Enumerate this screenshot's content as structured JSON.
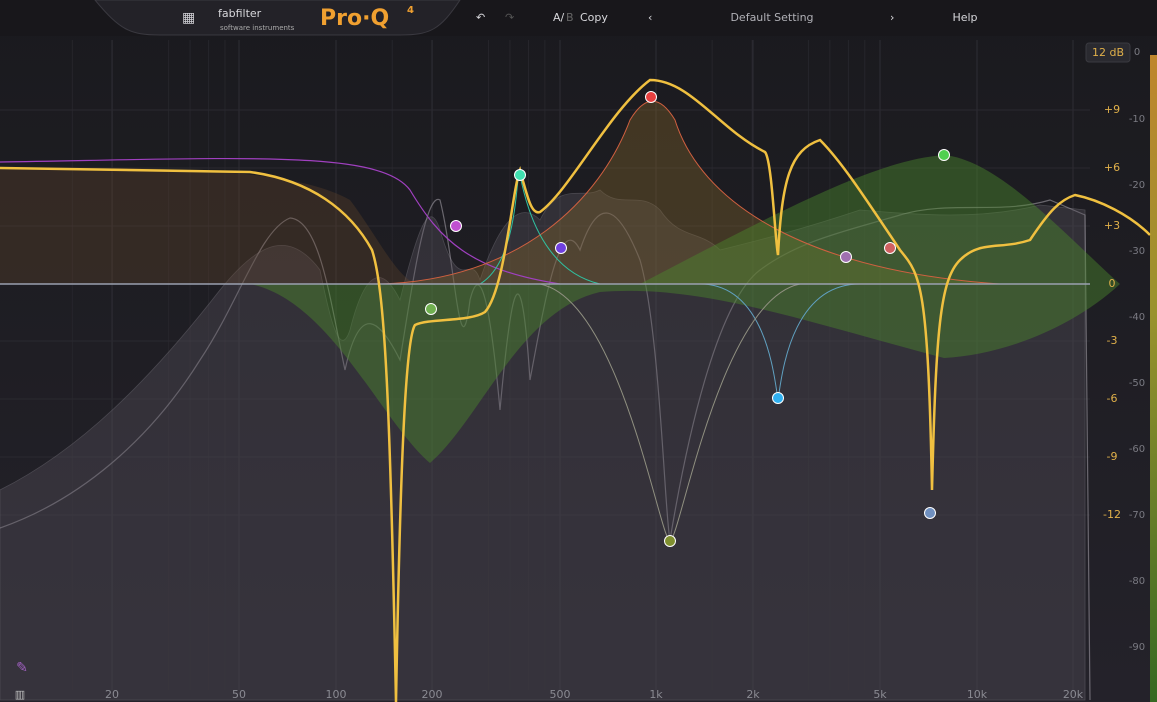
{
  "header": {
    "brand": "fabfilter",
    "tagline": "software instruments",
    "product": "Pro·Q",
    "version": "4",
    "ab_a": "A/",
    "ab_b": "B",
    "copy": "Copy",
    "preset": "Default Setting",
    "help": "Help"
  },
  "range_button": "12 dB",
  "freq_labels": [
    "20",
    "50",
    "100",
    "200",
    "500",
    "1k",
    "2k",
    "5k",
    "10k",
    "20k"
  ],
  "gain_labels": [
    "+9",
    "+6",
    "+3",
    "0",
    "-3",
    "-6",
    "-9",
    "-12"
  ],
  "analyzer_labels": [
    "0",
    "-10",
    "-20",
    "-30",
    "-40",
    "-50",
    "-60",
    "-70",
    "-80",
    "-90"
  ]
}
